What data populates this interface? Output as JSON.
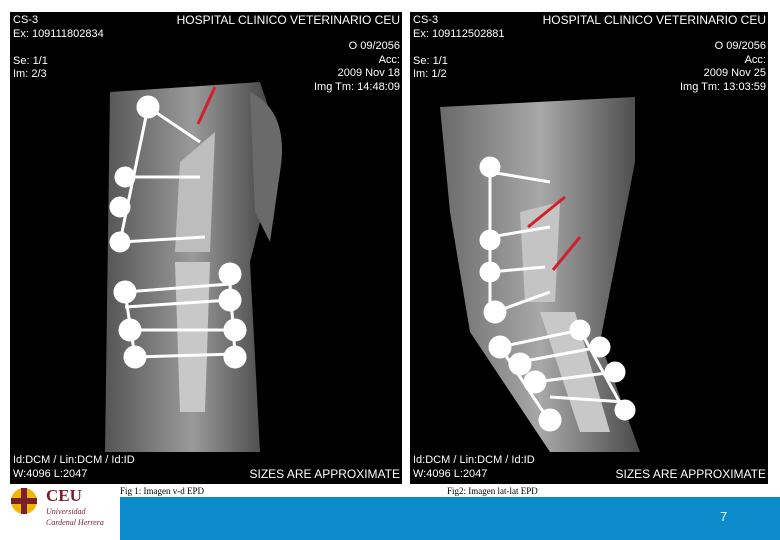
{
  "images": [
    {
      "id_top": [
        "CS-3",
        "Ex: 109111802834",
        "Se: 1/1",
        "Im: 2/3"
      ],
      "info_top": [
        "HOSPITAL CLINICO VETERINARIO CEU",
        "O 09/2056",
        "Acc:",
        "2009 Nov 18",
        "Img Tm: 14:48:09"
      ],
      "bottom": [
        "Id:DCM / Lin:DCM / Id:ID",
        "W:4096 L:2047",
        "SIZES ARE APPROXIMATE"
      ],
      "caption": "Fig 1: Imagen v-d EPD"
    },
    {
      "id_top": [
        "CS-3",
        "Ex: 109112502881",
        "Se: 1/1",
        "Im: 1/2"
      ],
      "info_top": [
        "HOSPITAL CLINICO VETERINARIO CEU",
        "O 09/2056",
        "Acc:",
        "2009 Nov 25",
        "Img Tm: 13:03:59"
      ],
      "bottom": [
        "Id:DCM / Lin:DCM / Id:ID",
        "W:4096 L:2047",
        "SIZES ARE APPROXIMATE"
      ],
      "caption": "Fig2: Imagen lat-lat EPD"
    }
  ],
  "logo": {
    "name": "CEU",
    "line1": "Universidad",
    "line2": "Cardenal Herrera"
  },
  "page_number": "7"
}
